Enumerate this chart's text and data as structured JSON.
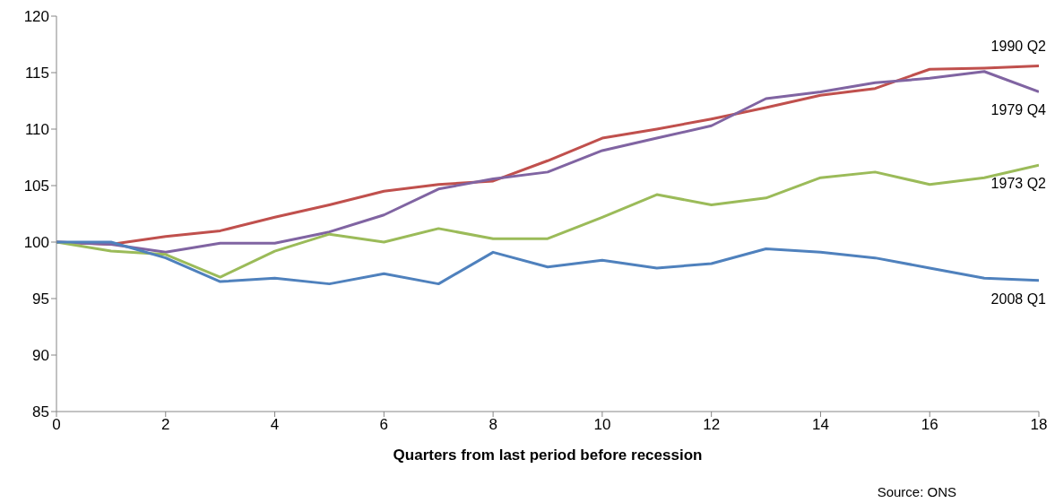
{
  "chart_data": {
    "type": "line",
    "xlabel": "Quarters from last period before recession",
    "annotations": [
      "Source: ONS"
    ],
    "x": [
      0,
      1,
      2,
      3,
      4,
      5,
      6,
      7,
      8,
      9,
      10,
      11,
      12,
      13,
      14,
      15,
      16,
      17,
      18
    ],
    "series": [
      {
        "name": "1990 Q2",
        "color": "#c0504d",
        "values": [
          100,
          99.8,
          100.5,
          101,
          102.2,
          103.3,
          104.5,
          105.1,
          105.4,
          107.2,
          109.2,
          110,
          110.9,
          111.9,
          113,
          113.6,
          115.3,
          115.4,
          115.6
        ]
      },
      {
        "name": "1979 Q4",
        "color": "#8064a2",
        "values": [
          100,
          99.8,
          99.1,
          99.9,
          99.9,
          100.9,
          102.4,
          104.7,
          105.6,
          106.2,
          108.1,
          109.2,
          110.3,
          112.7,
          113.3,
          114.1,
          114.5,
          115.1,
          113.3
        ]
      },
      {
        "name": "1973 Q2",
        "color": "#9bbb59",
        "values": [
          100,
          99.2,
          98.9,
          96.9,
          99.2,
          100.7,
          100,
          101.2,
          100.3,
          100.3,
          102.2,
          104.2,
          103.3,
          103.9,
          105.7,
          106.2,
          105.1,
          105.7,
          106.8
        ]
      },
      {
        "name": "2008 Q1",
        "color": "#4f81bd",
        "values": [
          100,
          100,
          98.6,
          96.5,
          96.8,
          96.3,
          97.2,
          96.3,
          99.1,
          97.8,
          98.4,
          97.7,
          98.1,
          99.4,
          99.1,
          98.6,
          97.7,
          96.8,
          96.6
        ]
      }
    ],
    "xlim": [
      0,
      18
    ],
    "xticks": [
      0,
      2,
      4,
      6,
      8,
      10,
      12,
      14,
      16,
      18
    ],
    "ylim": [
      85,
      120
    ],
    "yticks": [
      85,
      90,
      95,
      100,
      105,
      110,
      115,
      120
    ],
    "grid": false,
    "legend": false,
    "marker": "none",
    "line_style": "solid"
  }
}
